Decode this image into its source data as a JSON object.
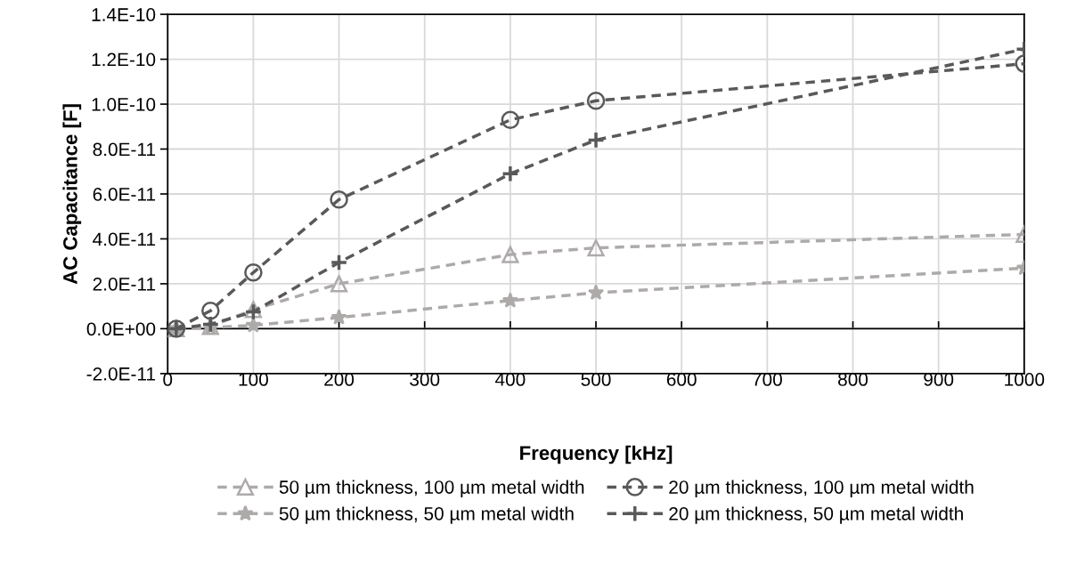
{
  "chart_data": {
    "type": "line",
    "xlabel": "Frequency [kHz]",
    "ylabel": "AC Capacitance [F]",
    "x": [
      10,
      50,
      100,
      200,
      400,
      500,
      1000
    ],
    "series": [
      {
        "name": "50 µm thickness, 100 µm metal width",
        "color": "#aeaaaa",
        "marker": "triangle",
        "values": [
          0,
          1e-12,
          8.5e-12,
          2e-11,
          3.3e-11,
          3.6e-11,
          4.2e-11
        ]
      },
      {
        "name": "50 µm thickness, 50 µm metal width",
        "color": "#aeaaaa",
        "marker": "star",
        "values": [
          0,
          5e-13,
          1.5e-12,
          5e-12,
          1.25e-11,
          1.6e-11,
          2.7e-11
        ]
      },
      {
        "name": "20 µm thickness, 100 µm metal width",
        "color": "#595959",
        "marker": "circle",
        "values": [
          0,
          8e-12,
          2.5e-11,
          5.75e-11,
          9.3e-11,
          1.015e-10,
          1.18e-10
        ]
      },
      {
        "name": "20 µm thickness, 50 µm metal width",
        "color": "#595959",
        "marker": "cross",
        "values": [
          0,
          2e-12,
          7.5e-12,
          2.95e-11,
          6.9e-11,
          8.4e-11,
          1.245e-10
        ]
      }
    ],
    "line_style": "dashed",
    "grid": true,
    "legend": "bottom",
    "xlim": [
      0,
      1000
    ],
    "xticks": [
      0,
      100,
      200,
      300,
      400,
      500,
      600,
      700,
      800,
      900,
      1000
    ],
    "ylim": [
      -2e-11,
      1.4e-10
    ],
    "yticks": [
      {
        "value": -2e-11,
        "label": "-2.0E-11"
      },
      {
        "value": 0,
        "label": "0.0E+00"
      },
      {
        "value": 2e-11,
        "label": "2.0E-11"
      },
      {
        "value": 4e-11,
        "label": "4.0E-11"
      },
      {
        "value": 6e-11,
        "label": "6.0E-11"
      },
      {
        "value": 8e-11,
        "label": "8.0E-11"
      },
      {
        "value": 1e-10,
        "label": "1.0E-10"
      },
      {
        "value": 1.2e-10,
        "label": "1.2E-10"
      },
      {
        "value": 1.4e-10,
        "label": "1.4E-10"
      }
    ]
  }
}
